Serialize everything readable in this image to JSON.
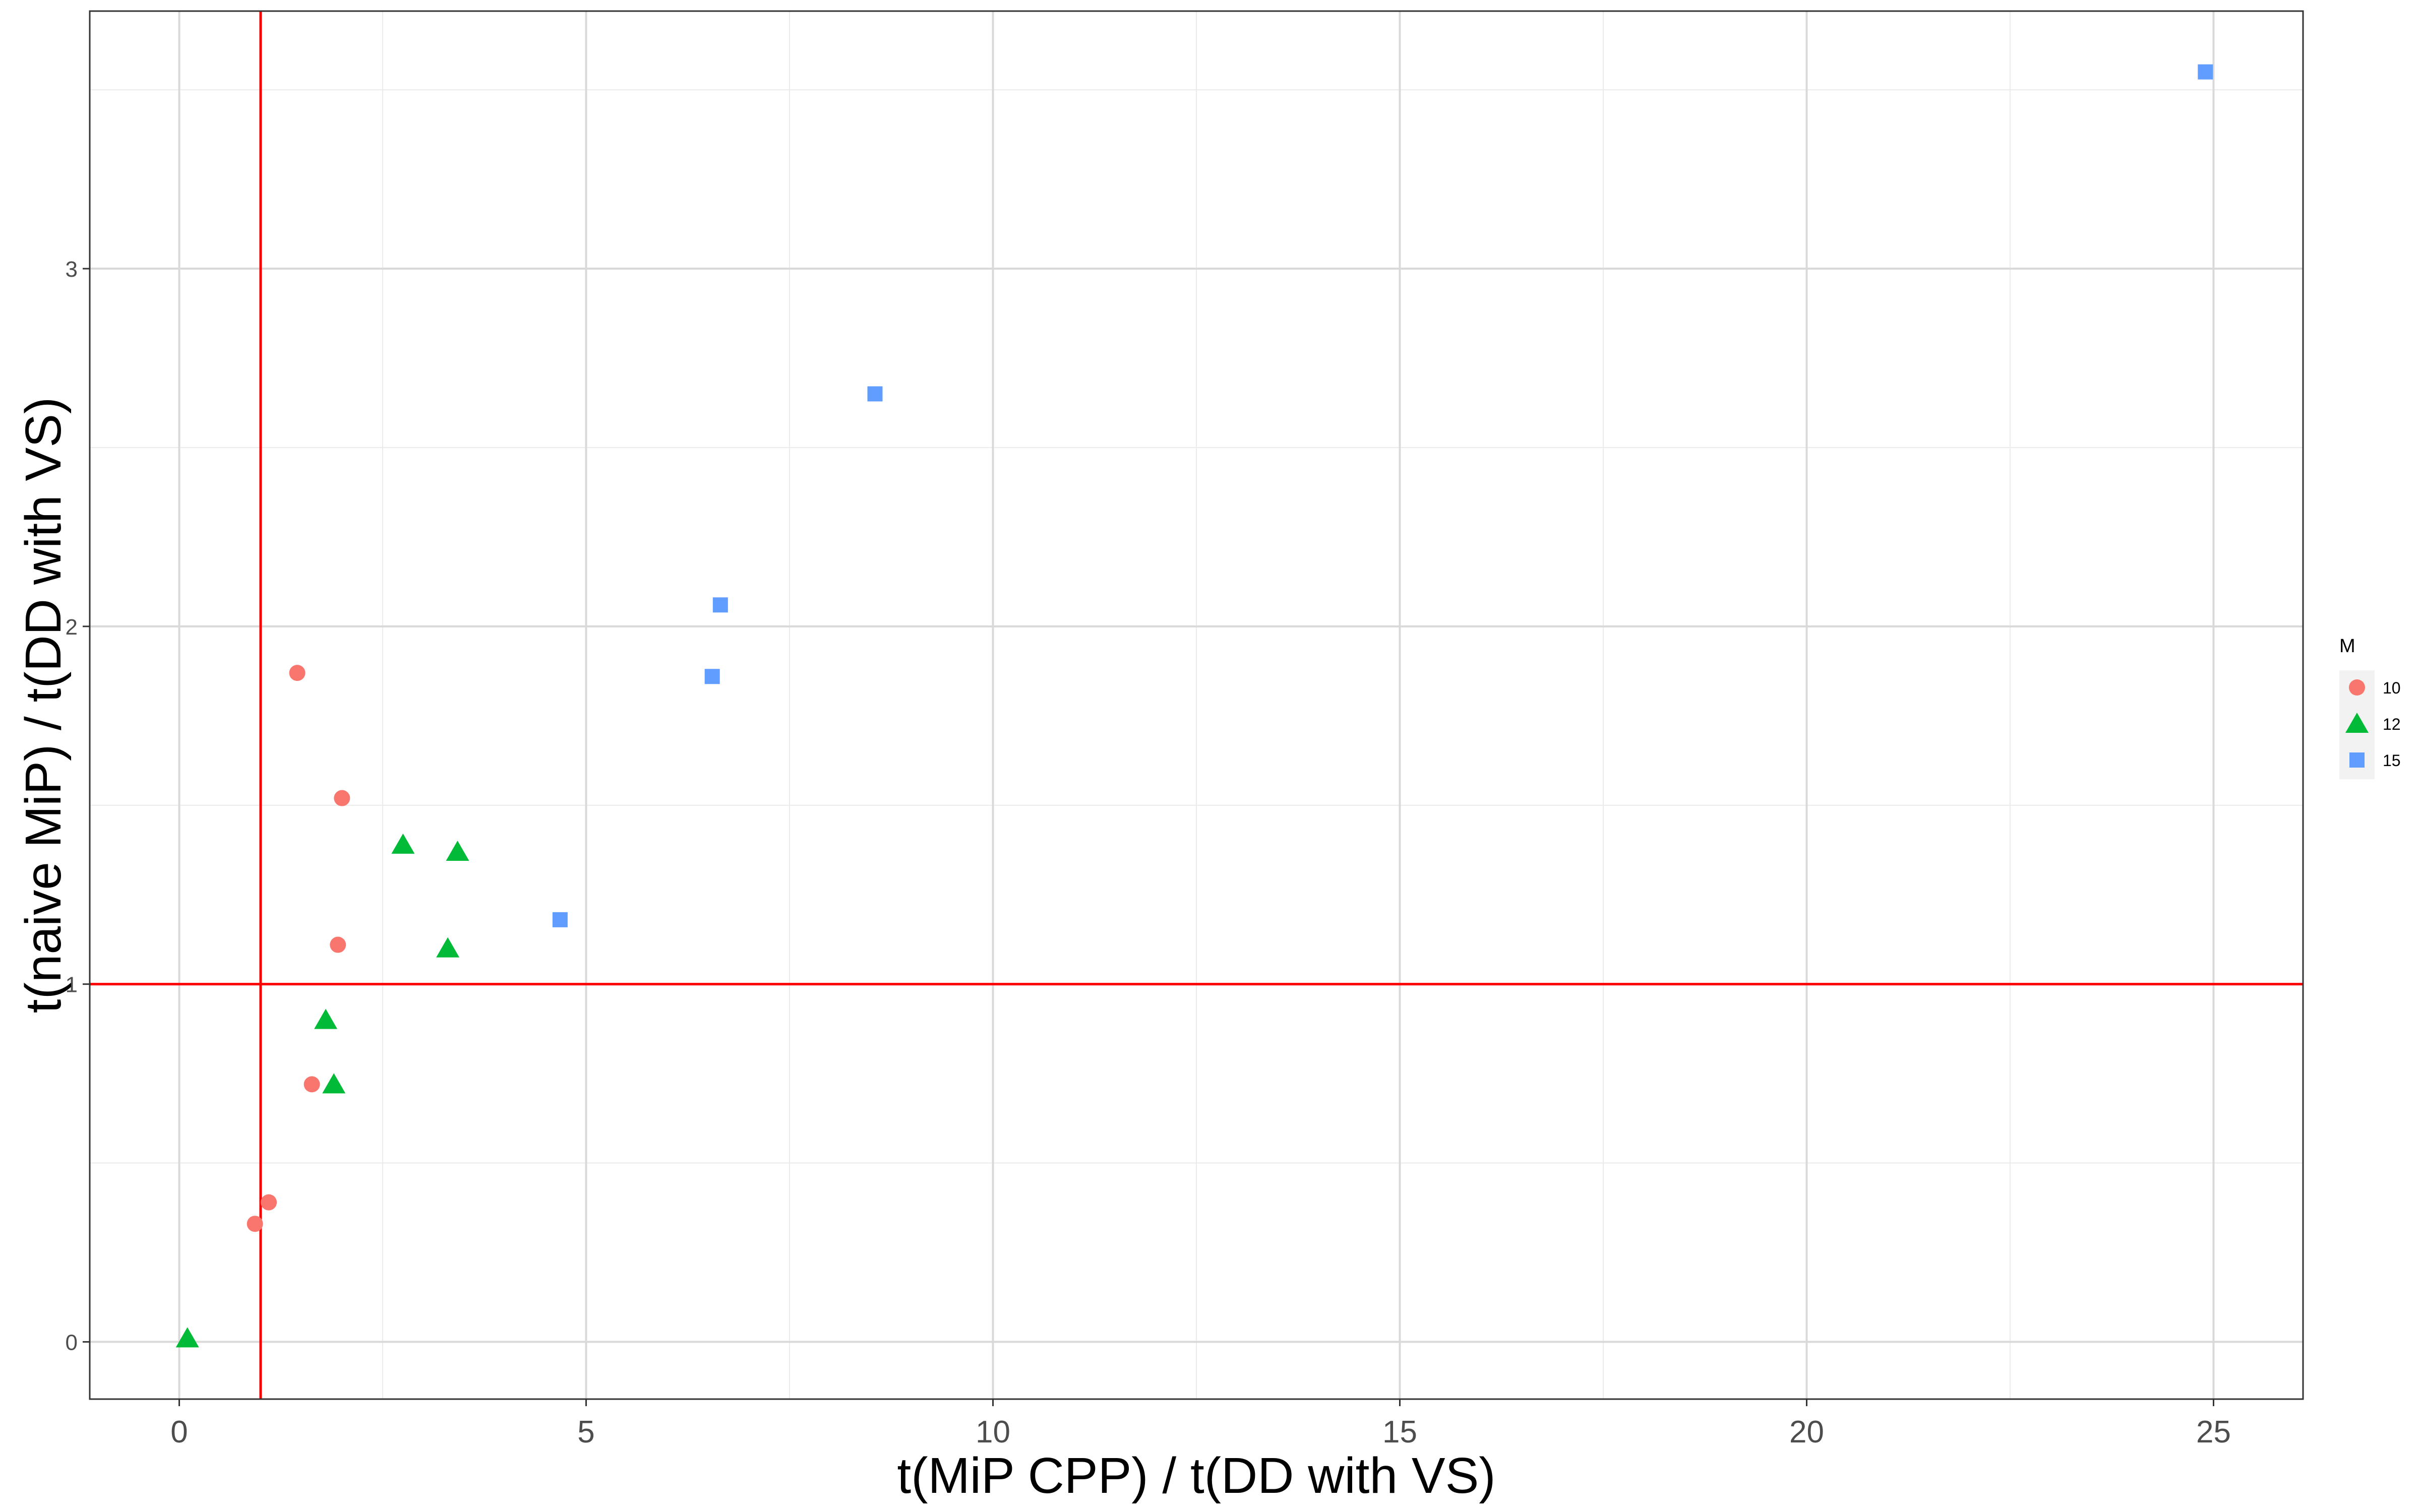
{
  "chart_data": {
    "type": "scatter",
    "title": "",
    "xlabel": "t(MiP CPP) / t(DD with VS)",
    "ylabel": "t(naive MiP) / t(DD with VS)",
    "xlim": [
      -1.1,
      26.1
    ],
    "ylim": [
      -0.16,
      3.72
    ],
    "x_ticks": [
      0,
      5,
      10,
      15,
      20,
      25
    ],
    "x_tick_labels": [
      "0",
      "5",
      "10",
      "15",
      "20",
      "25"
    ],
    "y_ticks": [
      0,
      1,
      2,
      3
    ],
    "y_tick_labels": [
      "0",
      "1",
      "2",
      "3"
    ],
    "grid": true,
    "reference_lines": {
      "vertical_x": 1.0,
      "horizontal_y": 1.0,
      "color": "#ff0000"
    },
    "legend": {
      "title": "M",
      "position": "right"
    },
    "series": [
      {
        "name": "10",
        "color": "#F8766D",
        "marker": "circle",
        "points": [
          [
            0.93,
            0.33
          ],
          [
            1.1,
            0.39
          ],
          [
            1.45,
            1.87
          ],
          [
            1.63,
            0.72
          ],
          [
            1.95,
            1.11
          ],
          [
            2.0,
            1.52
          ]
        ]
      },
      {
        "name": "12",
        "color": "#00BA38",
        "marker": "triangle",
        "points": [
          [
            0.1,
            0.01
          ],
          [
            1.8,
            0.9
          ],
          [
            1.9,
            0.72
          ],
          [
            2.75,
            1.39
          ],
          [
            3.3,
            1.1
          ],
          [
            3.42,
            1.37
          ]
        ]
      },
      {
        "name": "15",
        "color": "#619CFF",
        "marker": "square",
        "points": [
          [
            4.68,
            1.18
          ],
          [
            6.55,
            1.86
          ],
          [
            6.65,
            2.06
          ],
          [
            8.55,
            2.65
          ],
          [
            24.9,
            3.55
          ]
        ]
      }
    ]
  }
}
